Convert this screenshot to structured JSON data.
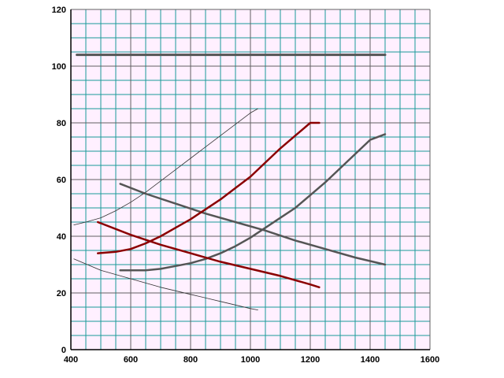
{
  "chart_data": {
    "type": "line",
    "title": "",
    "xlabel": "",
    "ylabel": "",
    "xlim": [
      400,
      1600
    ],
    "ylim": [
      0,
      120
    ],
    "x_ticks": [
      "400",
      "600",
      "800",
      "1000",
      "1200",
      "1400",
      "1600"
    ],
    "y_ticks": [
      "0",
      "20",
      "40",
      "60",
      "80",
      "100",
      "120"
    ],
    "grid": true,
    "legend": "none",
    "colors": {
      "background": "#ffffff",
      "plot_background": "#fff0ff",
      "minor_grid": "#1a9a9a",
      "major_grid": "#606060",
      "axis": "#000000"
    },
    "series": [
      {
        "color": "#555555",
        "width": 3,
        "points": [
          [
            420,
            104
          ],
          [
            1450,
            104
          ]
        ]
      },
      {
        "color": "#555555",
        "width": 2.5,
        "points": [
          [
            565,
            58.5
          ],
          [
            650,
            55
          ],
          [
            750,
            51.5
          ],
          [
            850,
            48
          ],
          [
            950,
            45
          ],
          [
            1050,
            42
          ],
          [
            1150,
            38.5
          ],
          [
            1250,
            35.5
          ],
          [
            1350,
            32.5
          ],
          [
            1450,
            30
          ]
        ]
      },
      {
        "color": "#555555",
        "width": 2.5,
        "points": [
          [
            565,
            28
          ],
          [
            650,
            28
          ],
          [
            700,
            28.5
          ],
          [
            750,
            29.5
          ],
          [
            800,
            30.5
          ],
          [
            850,
            32
          ],
          [
            900,
            34
          ],
          [
            950,
            36.5
          ],
          [
            1000,
            39.5
          ],
          [
            1050,
            43
          ],
          [
            1100,
            46.5
          ],
          [
            1150,
            50
          ],
          [
            1200,
            54.5
          ],
          [
            1250,
            59
          ],
          [
            1300,
            64
          ],
          [
            1350,
            69
          ],
          [
            1400,
            74
          ],
          [
            1450,
            76
          ]
        ]
      },
      {
        "color": "#8b0000",
        "width": 2.5,
        "points": [
          [
            490,
            34
          ],
          [
            550,
            34.5
          ],
          [
            600,
            35.5
          ],
          [
            650,
            37.5
          ],
          [
            700,
            40
          ],
          [
            750,
            43
          ],
          [
            800,
            46
          ],
          [
            850,
            49.5
          ],
          [
            900,
            53
          ],
          [
            950,
            57
          ],
          [
            1000,
            61
          ],
          [
            1050,
            66
          ],
          [
            1100,
            71
          ],
          [
            1150,
            75.5
          ],
          [
            1200,
            80
          ],
          [
            1230,
            80
          ]
        ]
      },
      {
        "color": "#8b0000",
        "width": 2.5,
        "points": [
          [
            490,
            45
          ],
          [
            600,
            40.5
          ],
          [
            700,
            37
          ],
          [
            800,
            34
          ],
          [
            900,
            31
          ],
          [
            1000,
            28.5
          ],
          [
            1100,
            26
          ],
          [
            1200,
            23
          ],
          [
            1230,
            22
          ]
        ]
      },
      {
        "color": "#333333",
        "width": 0.8,
        "points": [
          [
            410,
            44
          ],
          [
            450,
            45
          ],
          [
            500,
            46.5
          ],
          [
            550,
            49
          ],
          [
            600,
            52
          ],
          [
            650,
            55.5
          ],
          [
            700,
            59.5
          ],
          [
            750,
            63.5
          ],
          [
            800,
            67.5
          ],
          [
            850,
            71.5
          ],
          [
            900,
            75.5
          ],
          [
            950,
            79.5
          ],
          [
            1000,
            83.5
          ],
          [
            1025,
            85
          ]
        ]
      },
      {
        "color": "#333333",
        "width": 0.8,
        "points": [
          [
            410,
            32
          ],
          [
            500,
            28
          ],
          [
            600,
            25
          ],
          [
            700,
            22
          ],
          [
            800,
            19.5
          ],
          [
            900,
            17
          ],
          [
            1000,
            14.5
          ],
          [
            1025,
            14
          ]
        ]
      }
    ]
  }
}
